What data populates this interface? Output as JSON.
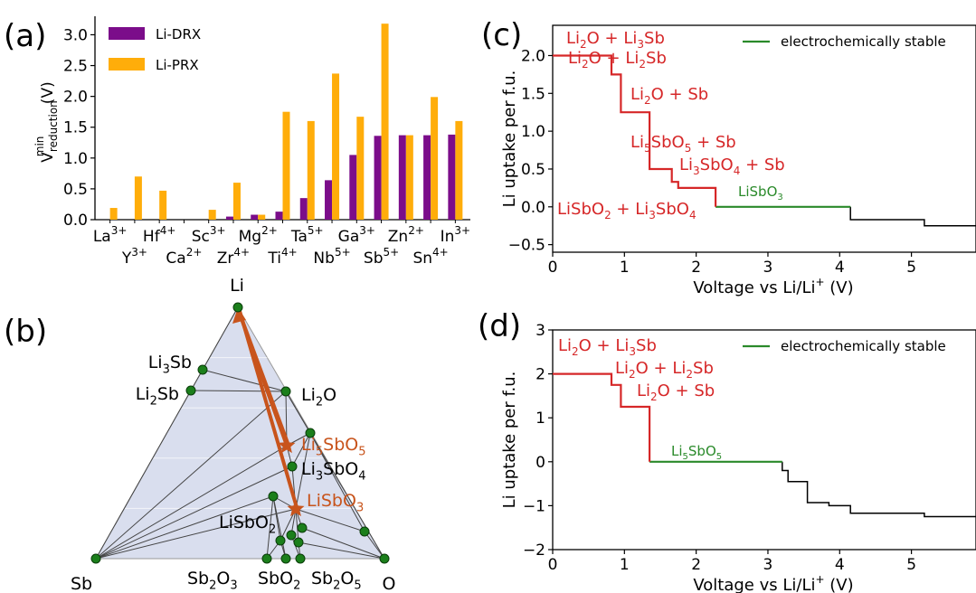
{
  "panel_labels": {
    "a": "(a)",
    "b": "(b)",
    "c": "(c)",
    "d": "(d)"
  },
  "colors": {
    "drx": "#7b0d8a",
    "prx": "#ffad0a",
    "red": "#d62728",
    "green": "#2a8a2a",
    "arrow": "#c8541c",
    "node": "#1b7f1b",
    "tri_fill": "#d9deee"
  },
  "chart_data": [
    {
      "type": "bar",
      "panel": "a",
      "ylabel": "V",
      "ylabel_sup": "min",
      "ylabel_sub": "reduction",
      "ylabel_unit": "(V)",
      "ylim": [
        0,
        3.3
      ],
      "yticks": [
        "0.0",
        "0.5",
        "1.0",
        "1.5",
        "2.0",
        "2.5",
        "3.0"
      ],
      "legend": [
        "Li-DRX",
        "Li-PRX"
      ],
      "legend_placement": "top-left",
      "categories": [
        {
          "el": "La",
          "ch": "3+"
        },
        {
          "el": "Y",
          "ch": "3+"
        },
        {
          "el": "Hf",
          "ch": "4+"
        },
        {
          "el": "Ca",
          "ch": "2+"
        },
        {
          "el": "Sc",
          "ch": "3+"
        },
        {
          "el": "Zr",
          "ch": "4+"
        },
        {
          "el": "Mg",
          "ch": "2+"
        },
        {
          "el": "Ti",
          "ch": "4+"
        },
        {
          "el": "Ta",
          "ch": "5+"
        },
        {
          "el": "Nb",
          "ch": "5+"
        },
        {
          "el": "Ga",
          "ch": "3+"
        },
        {
          "el": "Sb",
          "ch": "5+"
        },
        {
          "el": "Zn",
          "ch": "2+"
        },
        {
          "el": "Sn",
          "ch": "4+"
        },
        {
          "el": "In",
          "ch": "3+"
        }
      ],
      "series": [
        {
          "name": "Li-DRX",
          "values": [
            0.0,
            0.0,
            0.0,
            0.0,
            0.0,
            0.05,
            0.08,
            0.13,
            0.35,
            0.64,
            1.05,
            1.36,
            1.37,
            1.37,
            1.38
          ]
        },
        {
          "name": "Li-PRX",
          "values": [
            0.19,
            0.7,
            0.47,
            0.0,
            0.16,
            0.6,
            0.08,
            1.75,
            1.6,
            2.37,
            1.67,
            3.18,
            1.37,
            1.99,
            1.6
          ]
        }
      ]
    },
    {
      "type": "ternary",
      "panel": "b",
      "vertices": {
        "top": "Li",
        "left": "Sb",
        "right": "O"
      },
      "phases": [
        {
          "name": "Li",
          "x": 0.0,
          "y": 0.0
        },
        {
          "name": "Li3Sb",
          "x": 0.0,
          "y": 0.0
        },
        {
          "name": "Li2Sb",
          "x": 0.0,
          "y": 0.0
        },
        {
          "name": "Li2O",
          "x": 0.0,
          "y": 0.0
        }
      ],
      "labels": {
        "li": "Li",
        "sb": "Sb",
        "o": "O",
        "li3sb": {
          "base": "Li",
          "sub": "3",
          "tail": "Sb"
        },
        "li2sb": {
          "base": "Li",
          "sub": "2",
          "tail": "Sb"
        },
        "li2o": {
          "base": "Li",
          "sub": "2",
          "tail": "O"
        },
        "li5sbo5": {
          "base": "Li",
          "sub": "5",
          "tail": "SbO",
          "sub2": "5"
        },
        "li3sbo4": {
          "base": "Li",
          "sub": "3",
          "tail": "SbO",
          "sub2": "4"
        },
        "lisbo3": {
          "base": "LiSbO",
          "sub": "3"
        },
        "lisbo2": {
          "base": "LiSbO",
          "sub": "2"
        },
        "sb2o3": {
          "base": "Sb",
          "sub": "2",
          "tail": "O",
          "sub2": "3"
        },
        "sbo2": {
          "base": "SbO",
          "sub": "2"
        },
        "sb2o5": {
          "base": "Sb",
          "sub": "2",
          "tail": "O",
          "sub2": "5"
        }
      }
    },
    {
      "type": "line",
      "panel": "c",
      "xlabel": "Voltage vs Li/Li",
      "xlabel_sup": "+",
      "xlabel_unit": "(V)",
      "ylabel": "Li uptake per f.u.",
      "xlim": [
        0,
        5.9
      ],
      "ylim": [
        -0.6,
        2.4
      ],
      "xticks": [
        "0",
        "1",
        "2",
        "3",
        "4",
        "5"
      ],
      "yticks": [
        "−0.5",
        "0.0",
        "0.5",
        "1.0",
        "1.5",
        "2.0"
      ],
      "legend": [
        "electrochemically stable"
      ],
      "legend_placement": "top-right",
      "red_steps": [
        [
          0,
          2.0
        ],
        [
          0.82,
          2.0
        ],
        [
          0.82,
          1.75
        ],
        [
          0.95,
          1.75
        ],
        [
          0.95,
          1.25
        ],
        [
          1.35,
          1.25
        ],
        [
          1.35,
          0.5
        ],
        [
          1.66,
          0.5
        ],
        [
          1.66,
          0.33
        ],
        [
          1.75,
          0.33
        ],
        [
          1.75,
          0.25
        ],
        [
          2.27,
          0.25
        ],
        [
          2.27,
          0.0
        ]
      ],
      "green_steps": [
        [
          2.27,
          0.0
        ],
        [
          4.15,
          0.0
        ]
      ],
      "black_steps": [
        [
          4.15,
          0.0
        ],
        [
          4.15,
          -0.17
        ],
        [
          5.18,
          -0.17
        ],
        [
          5.18,
          -0.25
        ],
        [
          5.9,
          -0.25
        ]
      ],
      "annotations": {
        "c1": {
          "base": "Li",
          "sub": "2",
          "tail": "O + Li",
          "sub2": "3",
          "tail2": "Sb"
        },
        "c2": {
          "base": "Li",
          "sub": "2",
          "tail": "O + Li",
          "sub2": "2",
          "tail2": "Sb"
        },
        "c3": {
          "base": "Li",
          "sub": "2",
          "tail": "O + Sb"
        },
        "c4": {
          "base": "Li",
          "sub": "5",
          "tail": "SbO",
          "sub2": "5",
          "tail2": " + Sb"
        },
        "c5": {
          "base": "Li",
          "sub": "3",
          "tail": "SbO",
          "sub2": "4",
          "tail2": " + Sb"
        },
        "c6": {
          "base": "LiSbO",
          "sub": "2",
          "tail": " + Li",
          "sub2": "3",
          "tail2": "SbO",
          "sub3": "4"
        },
        "c7": {
          "base": "LiSbO",
          "sub": "3"
        }
      }
    },
    {
      "type": "line",
      "panel": "d",
      "xlabel": "Voltage vs Li/Li",
      "xlabel_sup": "+",
      "xlabel_unit": "(V)",
      "ylabel": "Li uptake per f.u.",
      "xlim": [
        0,
        5.9
      ],
      "ylim": [
        -2,
        3
      ],
      "xticks": [
        "0",
        "1",
        "2",
        "3",
        "4",
        "5"
      ],
      "yticks": [
        "−2",
        "−1",
        "0",
        "1",
        "2",
        "3"
      ],
      "legend": [
        "electrochemically stable"
      ],
      "legend_placement": "top-right",
      "red_steps": [
        [
          0,
          2.0
        ],
        [
          0.82,
          2.0
        ],
        [
          0.82,
          1.75
        ],
        [
          0.95,
          1.75
        ],
        [
          0.95,
          1.25
        ],
        [
          1.35,
          1.25
        ],
        [
          1.35,
          0.0
        ]
      ],
      "green_steps": [
        [
          1.35,
          0.0
        ],
        [
          3.2,
          0.0
        ]
      ],
      "black_steps": [
        [
          3.2,
          0.0
        ],
        [
          3.2,
          -0.2
        ],
        [
          3.28,
          -0.2
        ],
        [
          3.28,
          -0.45
        ],
        [
          3.55,
          -0.45
        ],
        [
          3.55,
          -0.93
        ],
        [
          3.85,
          -0.93
        ],
        [
          3.85,
          -1.0
        ],
        [
          4.15,
          -1.0
        ],
        [
          4.15,
          -1.17
        ],
        [
          5.18,
          -1.17
        ],
        [
          5.18,
          -1.25
        ],
        [
          5.9,
          -1.25
        ]
      ],
      "annotations": {
        "d1": {
          "base": "Li",
          "sub": "2",
          "tail": "O + Li",
          "sub2": "3",
          "tail2": "Sb"
        },
        "d2": {
          "base": "Li",
          "sub": "2",
          "tail": "O + Li",
          "sub2": "2",
          "tail2": "Sb"
        },
        "d3": {
          "base": "Li",
          "sub": "2",
          "tail": "O + Sb"
        },
        "d4": {
          "base": "Li",
          "sub": "5",
          "tail": "SbO",
          "sub2": "5"
        }
      }
    }
  ]
}
